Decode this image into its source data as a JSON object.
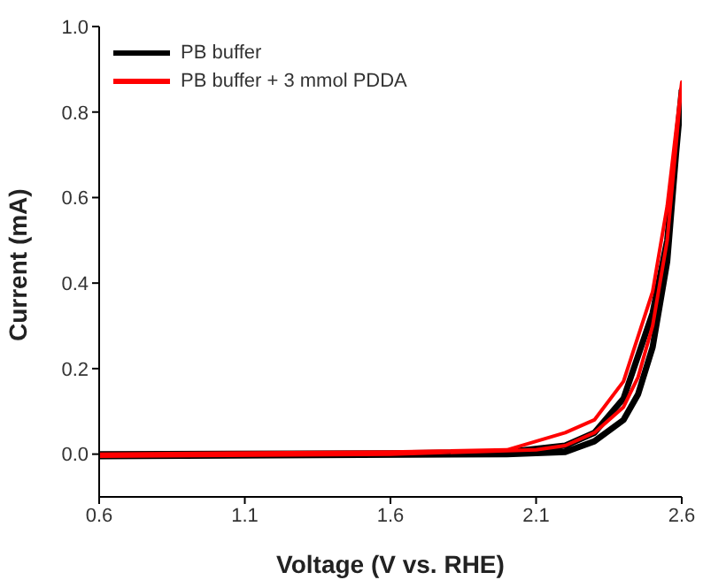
{
  "chart_data": {
    "type": "line",
    "xlabel": "Voltage (V vs. RHE)",
    "ylabel": "Current (mA)",
    "xlim": [
      0.6,
      2.6
    ],
    "xticks": [
      0.6,
      1.1,
      1.6,
      2.1,
      2.6
    ],
    "ylim": [
      -0.1,
      1.0
    ],
    "yticks": [
      {
        "value": 0,
        "label": "0.0"
      },
      0.2,
      0.4,
      0.6,
      0.8,
      {
        "value": 1,
        "label": "1.0"
      }
    ],
    "grid": false,
    "legend": "top left",
    "marker": "none",
    "line_style": "solid",
    "series": [
      {
        "name": "PB buffer",
        "color": "#000000",
        "x": [
          0.6,
          1.6,
          2.0,
          2.2,
          2.3,
          2.4,
          2.5,
          2.55,
          2.6,
          2.58,
          2.55,
          2.5,
          2.45,
          2.4,
          2.3,
          2.2,
          2.0,
          0.6
        ],
        "values": [
          0,
          0.002,
          0.005,
          0.02,
          0.05,
          0.13,
          0.33,
          0.5,
          0.85,
          0.7,
          0.45,
          0.25,
          0.14,
          0.08,
          0.03,
          0.005,
          0,
          -0.005
        ]
      },
      {
        "name": "PB buffer + 3 mmol PDDA",
        "color": "#ff0000",
        "x": [
          0.6,
          1.6,
          2.0,
          2.1,
          2.2,
          2.3,
          2.4,
          2.5,
          2.55,
          2.6,
          2.58,
          2.55,
          2.5,
          2.45,
          2.4,
          2.3,
          2.2,
          2.1,
          1.6,
          0.6
        ],
        "values": [
          0,
          0.005,
          0.01,
          0.03,
          0.05,
          0.08,
          0.17,
          0.38,
          0.58,
          0.87,
          0.72,
          0.5,
          0.3,
          0.18,
          0.11,
          0.05,
          0.02,
          0.01,
          0,
          -0.005
        ]
      }
    ]
  }
}
